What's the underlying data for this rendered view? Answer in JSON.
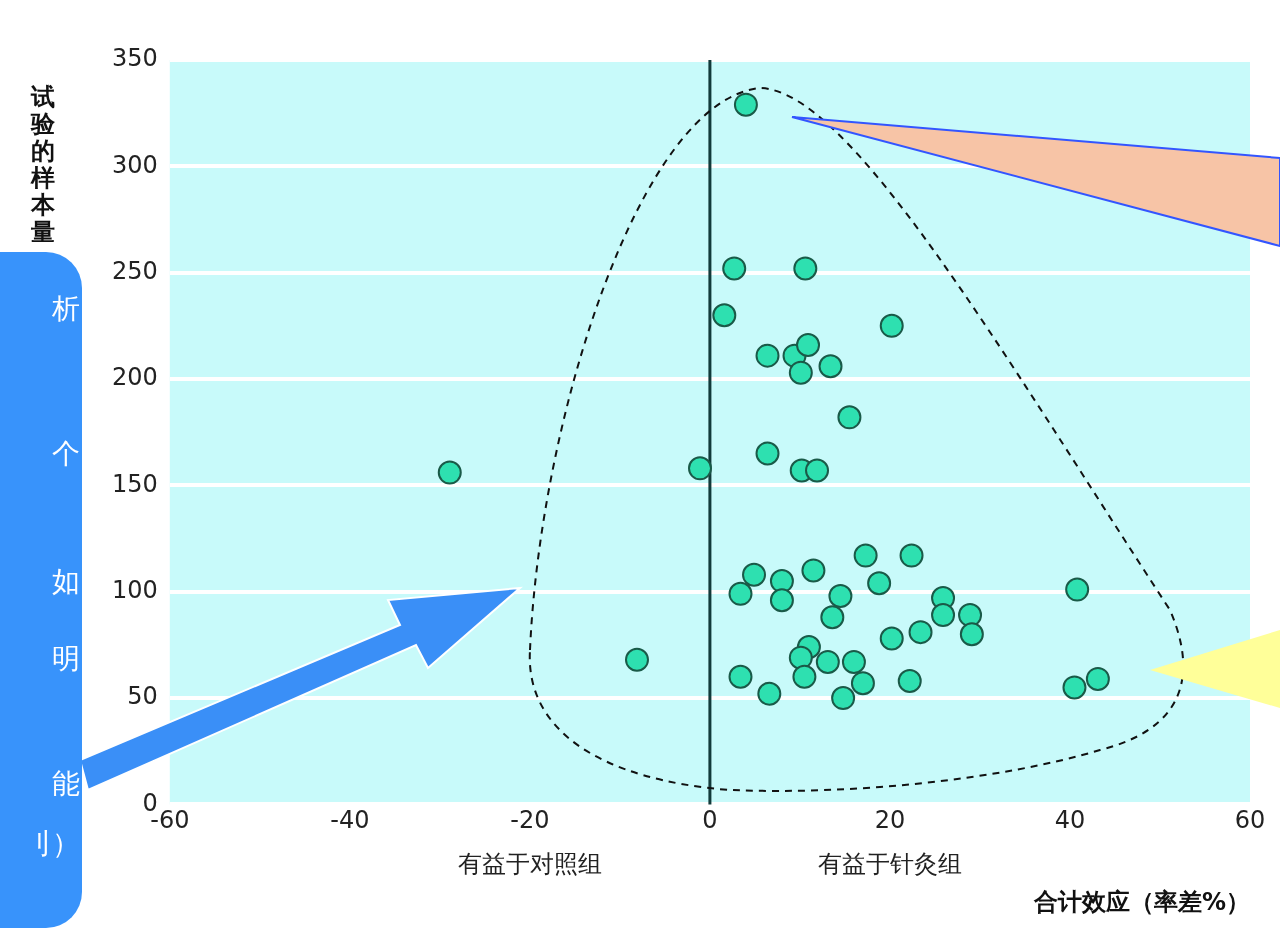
{
  "chart_data": {
    "type": "scatter",
    "xlabel": "合计效应（率差%）",
    "ylabel": "试验的样本量",
    "x": [
      4.0,
      2.7,
      10.6,
      1.6,
      20.2,
      6.4,
      9.4,
      10.9,
      10.1,
      13.4,
      15.5,
      6.4,
      -1.1,
      10.2,
      11.9,
      -28.9,
      17.3,
      22.4,
      4.9,
      11.5,
      8.0,
      18.8,
      3.4,
      8.0,
      14.5,
      40.8,
      25.9,
      13.6,
      25.9,
      28.9,
      29.1,
      23.4,
      20.2,
      11.0,
      10.1,
      13.1,
      16.0,
      -8.1,
      3.4,
      10.5,
      17.0,
      22.2,
      6.6,
      14.8,
      40.5,
      43.1
    ],
    "values": [
      329,
      252,
      252,
      230,
      225,
      211,
      211,
      216,
      203,
      206,
      182,
      165,
      158,
      157,
      157,
      156,
      117,
      117,
      108,
      110,
      105,
      104,
      99,
      96,
      98,
      101,
      97,
      88,
      89,
      89,
      80,
      81,
      78,
      74,
      69,
      67,
      67,
      68,
      60,
      60,
      57,
      58,
      52,
      50,
      55,
      59
    ],
    "color": "#2ee0b0",
    "marker": "circle",
    "xlim": [
      -60,
      60
    ],
    "xticks": [
      -60,
      -40,
      -20,
      0,
      20,
      40,
      60
    ],
    "ylim": [
      0,
      350
    ],
    "yticks": [
      0,
      50,
      100,
      150,
      200,
      250,
      300,
      350
    ],
    "grid": "y",
    "legend": false,
    "ref_lines": [
      {
        "axis": "x",
        "value": 0,
        "color": "#123a3a"
      }
    ],
    "annotations": [
      "有益于对照组",
      "有益于针灸组",
      "析",
      "个",
      "如",
      "明",
      "能",
      "刂）"
    ]
  }
}
